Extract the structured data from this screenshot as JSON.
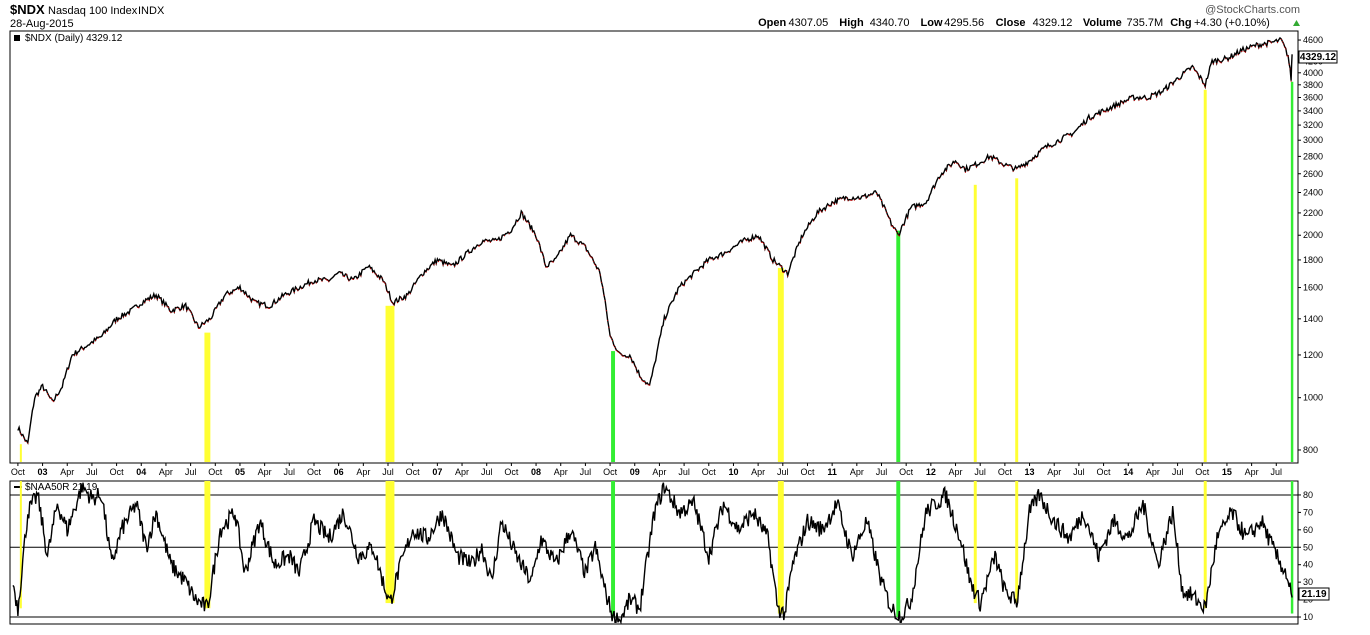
{
  "header": {
    "symbol": "$NDX",
    "name": "Nasdaq 100 Index",
    "exchange": "INDX",
    "date": "28-Aug-2015",
    "watermark": "@StockCharts.com",
    "stats": [
      {
        "label": "Open",
        "value": "4307.05"
      },
      {
        "label": "High",
        "value": "4340.70"
      },
      {
        "label": "Low",
        "value": "4295.56"
      },
      {
        "label": "Close",
        "value": "4329.12"
      },
      {
        "label": "Volume",
        "value": "735.7M"
      },
      {
        "label": "Chg",
        "value": "+4.30 (+0.10%)"
      }
    ]
  },
  "colors": {
    "price_line": "#000000",
    "down_bar": "#cc0000",
    "highlight_yellow": "#ffff33",
    "highlight_green": "#33ee33",
    "grid": "#000000"
  },
  "chart_data": [
    {
      "type": "line",
      "panel": "price",
      "label": "$NDX (Daily) 4329.12",
      "last_value": "4329.12",
      "scale": "log",
      "ylim": [
        760,
        4700
      ],
      "yticks": [
        800,
        1000,
        1200,
        1400,
        1600,
        1800,
        2000,
        2200,
        2400,
        2600,
        2800,
        3000,
        3200,
        3400,
        3600,
        3800,
        4000,
        4200,
        4600
      ],
      "x_labels": [
        "Oct",
        "03",
        "Apr",
        "Jul",
        "Oct",
        "04",
        "Apr",
        "Jul",
        "Oct",
        "05",
        "Apr",
        "Jul",
        "Oct",
        "06",
        "Apr",
        "Jul",
        "Oct",
        "07",
        "Apr",
        "Jul",
        "Oct",
        "08",
        "Apr",
        "Jul",
        "Oct",
        "09",
        "Apr",
        "Jul",
        "Oct",
        "10",
        "Apr",
        "Jul",
        "Oct",
        "11",
        "Apr",
        "Jul",
        "Oct",
        "12",
        "Apr",
        "Jul",
        "Oct",
        "13",
        "Apr",
        "Jul",
        "Oct",
        "14",
        "Apr",
        "Jul",
        "Oct",
        "15",
        "Apr",
        "Jul"
      ],
      "bold_x_labels": [
        "03",
        "04",
        "05",
        "06",
        "07",
        "08",
        "09",
        "10",
        "11",
        "12",
        "13",
        "14",
        "15"
      ],
      "x": [
        2002.75,
        2002.85,
        2002.92,
        2003.0,
        2003.1,
        2003.2,
        2003.3,
        2003.45,
        2003.6,
        2003.75,
        2003.9,
        2004.0,
        2004.15,
        2004.3,
        2004.45,
        2004.58,
        2004.7,
        2004.85,
        2005.0,
        2005.15,
        2005.3,
        2005.45,
        2005.6,
        2005.75,
        2005.9,
        2006.0,
        2006.15,
        2006.3,
        2006.45,
        2006.55,
        2006.7,
        2006.85,
        2007.0,
        2007.15,
        2007.3,
        2007.45,
        2007.6,
        2007.75,
        2007.85,
        2008.0,
        2008.1,
        2008.2,
        2008.35,
        2008.5,
        2008.65,
        2008.75,
        2008.85,
        2008.95,
        2009.05,
        2009.15,
        2009.2,
        2009.3,
        2009.45,
        2009.6,
        2009.75,
        2009.9,
        2010.0,
        2010.1,
        2010.25,
        2010.4,
        2010.55,
        2010.7,
        2010.85,
        2011.0,
        2011.15,
        2011.3,
        2011.45,
        2011.6,
        2011.67,
        2011.8,
        2011.95,
        2012.1,
        2012.25,
        2012.35,
        2012.45,
        2012.6,
        2012.75,
        2012.87,
        2013.0,
        2013.15,
        2013.3,
        2013.45,
        2013.6,
        2013.75,
        2013.9,
        2014.05,
        2014.2,
        2014.35,
        2014.5,
        2014.65,
        2014.78,
        2014.85,
        2015.0,
        2015.15,
        2015.3,
        2015.45,
        2015.55,
        2015.62,
        2015.65,
        2015.66
      ],
      "y": [
        880,
        820,
        1000,
        1050,
        980,
        1050,
        1200,
        1250,
        1300,
        1400,
        1450,
        1500,
        1550,
        1450,
        1480,
        1350,
        1400,
        1550,
        1600,
        1500,
        1480,
        1550,
        1600,
        1650,
        1650,
        1700,
        1650,
        1750,
        1650,
        1500,
        1550,
        1700,
        1800,
        1750,
        1850,
        1950,
        1950,
        2050,
        2200,
        2000,
        1750,
        1800,
        2000,
        1900,
        1700,
        1300,
        1200,
        1200,
        1100,
        1050,
        1150,
        1400,
        1600,
        1700,
        1800,
        1850,
        1900,
        1950,
        2000,
        1800,
        1700,
        2000,
        2200,
        2300,
        2350,
        2350,
        2400,
        2100,
        2000,
        2250,
        2300,
        2600,
        2750,
        2650,
        2700,
        2800,
        2700,
        2650,
        2750,
        2900,
        3000,
        3100,
        3300,
        3400,
        3500,
        3600,
        3600,
        3700,
        3900,
        4100,
        3800,
        4200,
        4250,
        4400,
        4500,
        4550,
        4600,
        4300,
        3900,
        4329
      ]
    },
    {
      "type": "line",
      "panel": "indicator",
      "label": "$NAA50R 21.19",
      "last_value": "21.19",
      "ylim": [
        6,
        88
      ],
      "yticks": [
        10,
        20,
        30,
        40,
        50,
        60,
        70,
        80
      ],
      "reference_lines": [
        10,
        50,
        80
      ],
      "x": [
        2002.7,
        2002.75,
        2002.85,
        2002.95,
        2003.05,
        2003.15,
        2003.25,
        2003.4,
        2003.5,
        2003.6,
        2003.7,
        2003.8,
        2003.95,
        2004.05,
        2004.15,
        2004.3,
        2004.45,
        2004.55,
        2004.67,
        2004.8,
        2004.95,
        2005.05,
        2005.2,
        2005.35,
        2005.5,
        2005.6,
        2005.75,
        2005.9,
        2006.05,
        2006.2,
        2006.35,
        2006.45,
        2006.52,
        2006.6,
        2006.75,
        2006.9,
        2007.05,
        2007.2,
        2007.35,
        2007.45,
        2007.55,
        2007.65,
        2007.8,
        2007.95,
        2008.05,
        2008.2,
        2008.35,
        2008.5,
        2008.6,
        2008.7,
        2008.78,
        2008.85,
        2008.95,
        2009.05,
        2009.2,
        2009.3,
        2009.45,
        2009.6,
        2009.75,
        2009.9,
        2010.05,
        2010.2,
        2010.35,
        2010.45,
        2010.52,
        2010.6,
        2010.75,
        2010.9,
        2011.05,
        2011.2,
        2011.35,
        2011.5,
        2011.6,
        2011.7,
        2011.8,
        2011.95,
        2012.05,
        2012.15,
        2012.3,
        2012.4,
        2012.5,
        2012.65,
        2012.75,
        2012.87,
        2013.0,
        2013.1,
        2013.25,
        2013.4,
        2013.55,
        2013.7,
        2013.85,
        2014.0,
        2014.15,
        2014.3,
        2014.45,
        2014.55,
        2014.65,
        2014.78,
        2014.9,
        2015.05,
        2015.2,
        2015.35,
        2015.5,
        2015.6,
        2015.66
      ],
      "y": [
        30,
        15,
        70,
        80,
        45,
        75,
        60,
        85,
        78,
        80,
        40,
        60,
        75,
        50,
        70,
        40,
        30,
        20,
        15,
        60,
        70,
        35,
        65,
        40,
        45,
        35,
        65,
        55,
        70,
        45,
        50,
        30,
        18,
        35,
        60,
        55,
        70,
        45,
        40,
        50,
        30,
        65,
        45,
        30,
        55,
        40,
        60,
        35,
        50,
        25,
        10,
        8,
        20,
        15,
        70,
        85,
        70,
        75,
        45,
        75,
        60,
        70,
        55,
        15,
        12,
        40,
        65,
        60,
        75,
        45,
        65,
        30,
        15,
        10,
        20,
        70,
        75,
        80,
        55,
        30,
        18,
        45,
        25,
        18,
        70,
        80,
        65,
        55,
        70,
        45,
        65,
        55,
        75,
        40,
        70,
        25,
        22,
        15,
        55,
        70,
        55,
        65,
        45,
        35,
        21.19
      ]
    }
  ],
  "highlights": [
    {
      "x": 2002.78,
      "color": "yellow",
      "width": 0.02,
      "price_top": 820,
      "ind_low": 15
    },
    {
      "x": 2004.67,
      "color": "yellow",
      "width": 0.06,
      "price_top": 1320,
      "ind_low": 15
    },
    {
      "x": 2006.52,
      "color": "yellow",
      "width": 0.09,
      "price_top": 1480,
      "ind_low": 18
    },
    {
      "x": 2008.78,
      "color": "green",
      "width": 0.04,
      "price_top": 1220,
      "ind_low": 10
    },
    {
      "x": 2010.48,
      "color": "yellow",
      "width": 0.06,
      "price_top": 1740,
      "ind_low": 12
    },
    {
      "x": 2011.67,
      "color": "green",
      "width": 0.04,
      "price_top": 2040,
      "ind_low": 10
    },
    {
      "x": 2012.45,
      "color": "yellow",
      "width": 0.03,
      "price_top": 2480,
      "ind_low": 18
    },
    {
      "x": 2012.87,
      "color": "yellow",
      "width": 0.03,
      "price_top": 2550,
      "ind_low": 18
    },
    {
      "x": 2014.78,
      "color": "yellow",
      "width": 0.03,
      "price_top": 3720,
      "ind_low": 15
    },
    {
      "x": 2015.66,
      "color": "green",
      "width": 0.025,
      "price_top": 3850,
      "ind_low": 12
    }
  ]
}
